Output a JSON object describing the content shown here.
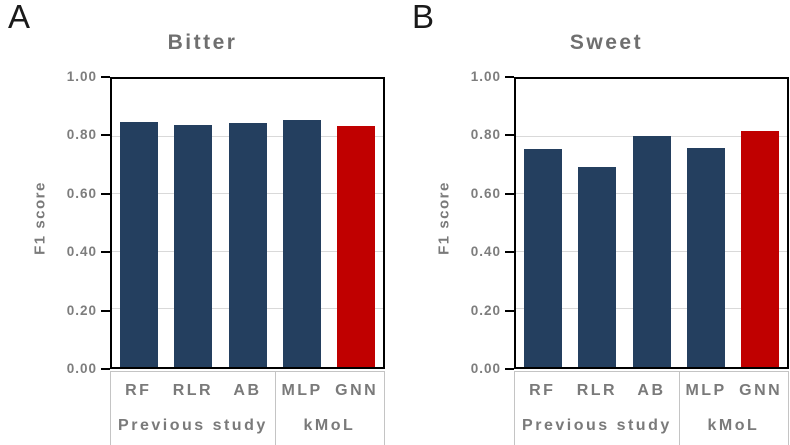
{
  "colors": {
    "bar_default": "#243F5F",
    "bar_highlight": "#C00000",
    "gridline": "#D9D9D9",
    "axis_frame": "#000000",
    "label_text_gray": "#7A7A7A",
    "label_box_border": "#C4C4C4"
  },
  "chart_data": [
    {
      "type": "bar",
      "panel_label": "A",
      "title": "Bitter",
      "ylabel": "F1 score",
      "xlabel": "",
      "ylim": [
        0.0,
        1.0
      ],
      "yticks": [
        0.0,
        0.2,
        0.4,
        0.6,
        0.8,
        1.0
      ],
      "ytick_labels": [
        "0.00",
        "0.20",
        "0.40",
        "0.60",
        "0.80",
        "1.00"
      ],
      "grid": "horizontal",
      "legend": "none",
      "categories": [
        "RF",
        "RLR",
        "AB",
        "MLP",
        "GNN"
      ],
      "values": [
        0.851,
        0.84,
        0.846,
        0.858,
        0.837
      ],
      "groups": [
        {
          "label": "Previous study",
          "categories": [
            "RF",
            "RLR",
            "AB"
          ],
          "span": 3
        },
        {
          "label": "kMoL",
          "categories": [
            "MLP",
            "GNN"
          ],
          "span": 2
        }
      ],
      "highlight_category": "GNN",
      "bar_color": "#243F5F",
      "highlight_color": "#C00000"
    },
    {
      "type": "bar",
      "panel_label": "B",
      "title": "Sweet",
      "ylabel": "F1 score",
      "xlabel": "",
      "ylim": [
        0.0,
        1.0
      ],
      "yticks": [
        0.0,
        0.2,
        0.4,
        0.6,
        0.8,
        1.0
      ],
      "ytick_labels": [
        "0.00",
        "0.20",
        "0.40",
        "0.60",
        "0.80",
        "1.00"
      ],
      "grid": "horizontal",
      "legend": "none",
      "categories": [
        "RF",
        "RLR",
        "AB",
        "MLP",
        "GNN"
      ],
      "values": [
        0.757,
        0.693,
        0.801,
        0.76,
        0.818
      ],
      "groups": [
        {
          "label": "Previous study",
          "categories": [
            "RF",
            "RLR",
            "AB"
          ],
          "span": 3
        },
        {
          "label": "kMoL",
          "categories": [
            "MLP",
            "GNN"
          ],
          "span": 2
        }
      ],
      "highlight_category": "GNN",
      "bar_color": "#243F5F",
      "highlight_color": "#C00000"
    }
  ]
}
